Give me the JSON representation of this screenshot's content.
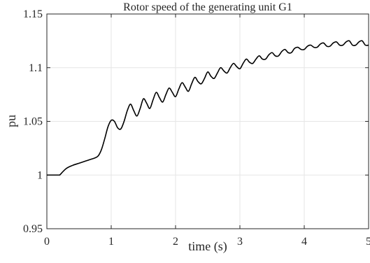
{
  "chart_data": {
    "type": "line",
    "title": "Rotor speed of the generating unit G1",
    "xlabel": "time (s)",
    "ylabel": "pu",
    "xlim": [
      0,
      5
    ],
    "ylim": [
      0.95,
      1.15
    ],
    "x_ticks": [
      0,
      1,
      2,
      3,
      4,
      5
    ],
    "y_ticks": [
      0.95,
      1,
      1.05,
      1.1,
      1.15
    ],
    "x_tick_labels": [
      "0",
      "1",
      "2",
      "3",
      "4",
      "5"
    ],
    "y_tick_labels": [
      "0.95",
      "1",
      "1.05",
      "1.1",
      "1.15"
    ],
    "grid": true,
    "line_color": "#000000",
    "series": [
      {
        "x": [
          0,
          0.2,
          0.3,
          0.4,
          0.5,
          0.6,
          0.7,
          0.75,
          0.8,
          0.85,
          0.9,
          0.95,
          1.0,
          1.05,
          1.1,
          1.15,
          1.2,
          1.25,
          1.3,
          1.35,
          1.4,
          1.45,
          1.5,
          1.55,
          1.6,
          1.65,
          1.7,
          1.75,
          1.8,
          1.85,
          1.9,
          1.95,
          2.0,
          2.05,
          2.1,
          2.15,
          2.2,
          2.25,
          2.3,
          2.35,
          2.4,
          2.45,
          2.5,
          2.55,
          2.6,
          2.65,
          2.7,
          2.75,
          2.8,
          2.85,
          2.9,
          2.95,
          3.0,
          3.05,
          3.1,
          3.15,
          3.2,
          3.25,
          3.3,
          3.35,
          3.4,
          3.45,
          3.5,
          3.55,
          3.6,
          3.65,
          3.7,
          3.75,
          3.8,
          3.85,
          3.9,
          3.95,
          4.0,
          4.05,
          4.1,
          4.15,
          4.2,
          4.25,
          4.3,
          4.35,
          4.4,
          4.45,
          4.5,
          4.55,
          4.6,
          4.65,
          4.7,
          4.75,
          4.8,
          4.85,
          4.9,
          4.95,
          5.0
        ],
        "y": [
          1.0,
          1.0,
          1.006,
          1.009,
          1.011,
          1.013,
          1.015,
          1.016,
          1.018,
          1.024,
          1.034,
          1.045,
          1.051,
          1.05,
          1.044,
          1.043,
          1.05,
          1.06,
          1.066,
          1.06,
          1.055,
          1.062,
          1.071,
          1.067,
          1.062,
          1.07,
          1.077,
          1.072,
          1.068,
          1.075,
          1.081,
          1.077,
          1.073,
          1.08,
          1.086,
          1.082,
          1.078,
          1.085,
          1.091,
          1.087,
          1.085,
          1.09,
          1.096,
          1.092,
          1.09,
          1.095,
          1.1,
          1.097,
          1.095,
          1.1,
          1.104,
          1.101,
          1.099,
          1.104,
          1.108,
          1.105,
          1.104,
          1.108,
          1.111,
          1.108,
          1.108,
          1.112,
          1.114,
          1.111,
          1.111,
          1.115,
          1.117,
          1.114,
          1.114,
          1.118,
          1.119,
          1.117,
          1.117,
          1.12,
          1.121,
          1.119,
          1.119,
          1.122,
          1.123,
          1.12,
          1.12,
          1.123,
          1.124,
          1.121,
          1.121,
          1.124,
          1.125,
          1.121,
          1.121,
          1.124,
          1.125,
          1.121,
          1.121
        ]
      }
    ]
  }
}
